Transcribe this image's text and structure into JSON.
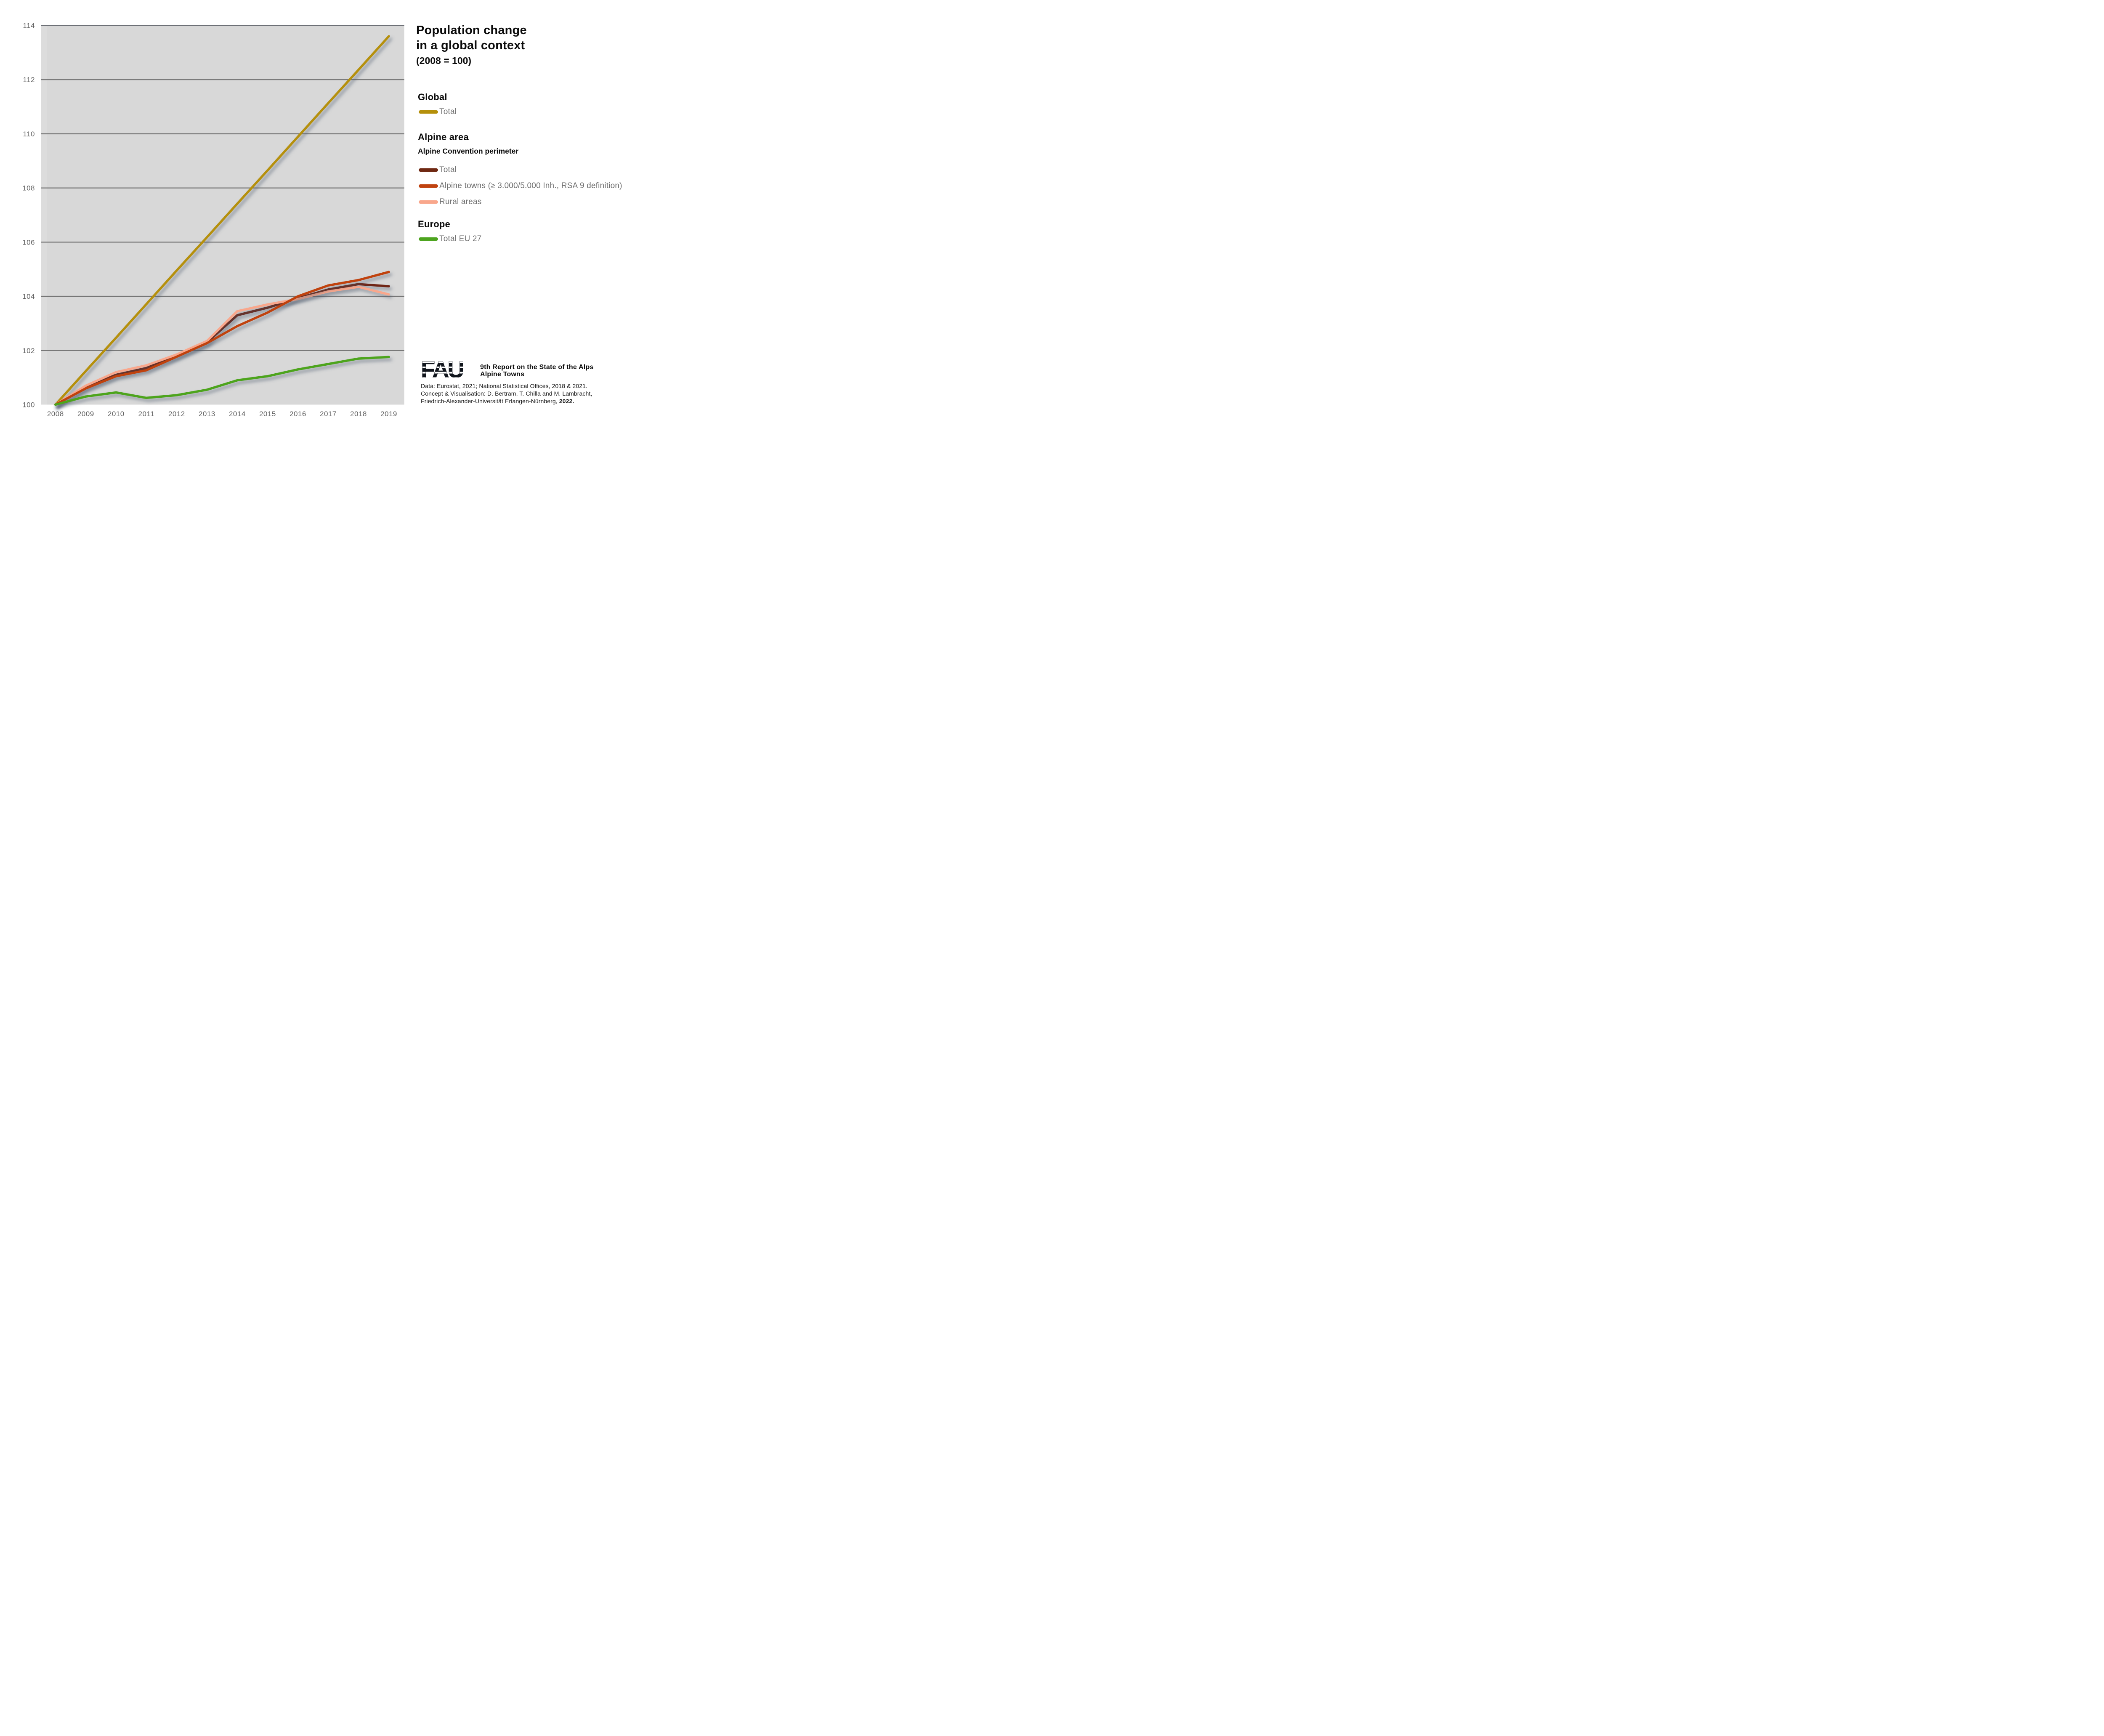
{
  "title": {
    "line1": "Population change",
    "line2": "in a global context",
    "subtitle": "(2008 = 100)"
  },
  "legend": {
    "global": {
      "header": "Global",
      "items": [
        {
          "series": "global_total",
          "label": "Total"
        }
      ]
    },
    "alpine": {
      "header": "Alpine area",
      "subheader": "Alpine Convention perimeter",
      "items": [
        {
          "series": "alpine_total",
          "label": "Total"
        },
        {
          "series": "alpine_towns",
          "label": "Alpine towns (≥ 3.000/5.000 Inh., RSA 9 definition)"
        },
        {
          "series": "rural_areas",
          "label": "Rural areas"
        }
      ]
    },
    "europe": {
      "header": "Europe",
      "items": [
        {
          "series": "eu27_total",
          "label": "Total EU 27"
        }
      ]
    }
  },
  "footer": {
    "logo_text": "FAU",
    "report_title_line1": "9th Report on the State of the Alps",
    "report_title_line2": "Alpine Towns",
    "credits_line1": "Data: Eurostat, 2021; National Statistical Offices, 2018 & 2021.",
    "credits_line2": "Concept & Visualisation: D. Bertram, T. Chilla and M. Lambracht,",
    "credits_line3_text": "Friedrich-Alexander-Universität Erlangen-Nürnberg, ",
    "credits_line3_bold": "2022."
  },
  "chart_data": {
    "type": "line",
    "title": "Population change in a global context (2008 = 100)",
    "x": [
      2008,
      2009,
      2010,
      2011,
      2012,
      2013,
      2014,
      2015,
      2016,
      2017,
      2018,
      2019
    ],
    "categories": [
      "2008",
      "2009",
      "2010",
      "2011",
      "2012",
      "2013",
      "2014",
      "2015",
      "2016",
      "2017",
      "2018",
      "2019"
    ],
    "ylim": [
      100,
      114
    ],
    "y_ticks": [
      100,
      102,
      104,
      106,
      108,
      110,
      112,
      114
    ],
    "grid": "horizontal",
    "legend_position": "right",
    "plot_bg": "#d8d8d8",
    "grid_color": "#747474",
    "right_border_color": "#7c828e",
    "axis_label_color": "#5f5f5f",
    "series": [
      {
        "id": "global_total",
        "name": "Global – Total",
        "color": "#b5900b",
        "values": [
          100,
          101.24,
          102.47,
          103.71,
          104.95,
          106.18,
          107.42,
          108.65,
          109.89,
          111.13,
          112.36,
          113.6
        ]
      },
      {
        "id": "alpine_total",
        "name": "Alpine area – Total (Alpine Convention perimeter)",
        "color": "#6f2812",
        "values": [
          100,
          100.65,
          101.1,
          101.35,
          101.8,
          102.3,
          103.3,
          103.58,
          103.93,
          104.25,
          104.45,
          104.37
        ]
      },
      {
        "id": "rural_areas",
        "name": "Alpine area – Rural areas",
        "color": "#f9a78c",
        "values": [
          100,
          100.7,
          101.2,
          101.45,
          101.85,
          102.35,
          103.45,
          103.7,
          103.9,
          104.18,
          104.35,
          104.07
        ]
      },
      {
        "id": "alpine_towns",
        "name": "Alpine area – Alpine towns (≥ 3.000/5.000 Inh., RSA 9 definition)",
        "color": "#c04310",
        "values": [
          100,
          100.6,
          101.05,
          101.27,
          101.77,
          102.27,
          102.9,
          103.4,
          104.0,
          104.4,
          104.6,
          104.9
        ]
      },
      {
        "id": "eu27_total",
        "name": "Europe – Total EU 27",
        "color": "#4da41f",
        "values": [
          100,
          100.3,
          100.45,
          100.25,
          100.35,
          100.55,
          100.9,
          101.05,
          101.3,
          101.5,
          101.7,
          101.76
        ]
      }
    ]
  }
}
